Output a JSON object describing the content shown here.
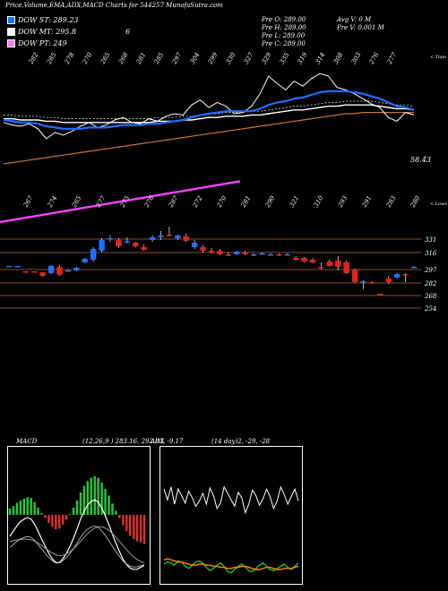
{
  "title": "Price,Volume,EMA,ADX,MACD Charts for 544257 MunafaSutra.com",
  "legend": [
    {
      "label": "DOW ST: 289.23",
      "color": "#1e6fff"
    },
    {
      "label": "DOW MT: 295.8",
      "color": "#ffffff"
    },
    {
      "label": "DOW PT: 249",
      "color": "#ff7ff0"
    }
  ],
  "legend_extra": "6",
  "info_left": [
    "Pre  O: 289.00",
    "Pre  H: 289.00",
    "Pre  L: 289.00",
    "Pre  C: 289.00"
  ],
  "info_right": [
    "Avg V: 0  M",
    "Pre  V: 0.001 M"
  ],
  "ema_label_top": "< Topo",
  "ema_label_bottom": "< Lows",
  "ema_last_value": "58.43",
  "macd_label": "MACD",
  "macd_values": "(12,26,9 ) 283.16, 292.83, -9.17",
  "adx_label": "ADX",
  "adx_values": "(14  day)2,  -29,  -28",
  "colors": {
    "up": "#1e6fff",
    "down": "#e0231e",
    "ema_fast": "#1e6fff",
    "ema_slow": "#ffffff",
    "ema_long": "#c87533",
    "pink": "#ff40ff",
    "macd_pos": "#22c93c",
    "macd_neg": "#e03030",
    "adx_white": "#ffffff",
    "adx_green": "#20c020",
    "adx_orange": "#ff8800"
  },
  "chart_data": [
    {
      "type": "line",
      "name": "ema-panel",
      "top_labels": [
        "282",
        "285",
        "278",
        "270",
        "265",
        "268",
        "281",
        "285",
        "297",
        "304",
        "299",
        "330",
        "327",
        "329",
        "335",
        "319",
        "314",
        "308",
        "303",
        "276",
        "277"
      ],
      "bottom_labels": [
        "267",
        "274",
        "265",
        "277",
        "275",
        "276",
        "287",
        "272",
        "270",
        "281",
        "290",
        "321",
        "310",
        "293",
        "291",
        "283",
        "280"
      ],
      "series": [
        {
          "name": "price",
          "values": [
            283,
            281,
            280,
            282,
            278,
            270,
            275,
            273,
            276,
            280,
            283,
            279,
            281,
            285,
            287,
            283,
            282,
            286,
            284,
            288,
            290,
            289,
            297,
            301,
            295,
            299,
            296,
            290,
            291,
            296,
            306,
            320,
            314,
            309,
            316,
            312,
            318,
            322,
            320,
            311,
            309,
            306,
            302,
            298,
            295,
            287,
            284,
            291,
            289
          ]
        },
        {
          "name": "ema_fast",
          "values": [
            285,
            284,
            283,
            283,
            282,
            280,
            279,
            278,
            278,
            278,
            279,
            279,
            279,
            280,
            281,
            281,
            281,
            282,
            282,
            283,
            284,
            285,
            287,
            289,
            290,
            291,
            292,
            292,
            292,
            292,
            294,
            297,
            299,
            300,
            302,
            303,
            305,
            307,
            308,
            308,
            308,
            307,
            306,
            304,
            302,
            299,
            296,
            295,
            293
          ]
        },
        {
          "name": "ema_slow",
          "values": [
            286,
            286,
            285,
            285,
            285,
            284,
            284,
            283,
            283,
            283,
            283,
            283,
            283,
            283,
            283,
            283,
            283,
            283,
            284,
            284,
            284,
            285,
            285,
            286,
            287,
            287,
            288,
            288,
            288,
            289,
            289,
            290,
            291,
            292,
            293,
            293,
            294,
            295,
            296,
            296,
            297,
            297,
            297,
            297,
            296,
            295,
            294,
            294,
            293
          ]
        },
        {
          "name": "ema_long",
          "values": [
            250,
            251,
            252,
            253,
            254,
            255,
            256,
            257,
            258,
            259,
            260,
            261,
            262,
            263,
            264,
            265,
            266,
            267,
            268,
            269,
            270,
            271,
            272,
            273,
            274,
            275,
            276,
            277,
            278,
            279,
            280,
            281,
            282,
            283,
            284,
            285,
            286,
            287,
            288,
            289,
            290,
            290,
            291,
            291,
            291,
            291,
            291,
            291,
            291
          ]
        },
        {
          "name": "pink",
          "values": [
            232,
            233,
            234,
            235,
            236,
            237,
            238,
            239,
            240,
            241,
            242,
            243,
            244,
            245,
            246,
            247,
            248,
            249,
            250,
            251,
            252,
            253,
            254,
            255,
            256
          ]
        }
      ]
    },
    {
      "type": "candlestick",
      "name": "price-panel",
      "y_ticks": [
        "331",
        "316",
        "297",
        "282",
        "268",
        "254"
      ],
      "candles": [
        {
          "o": 301,
          "h": 301,
          "l": 300,
          "c": 301
        },
        {
          "o": 301,
          "h": 301,
          "l": 300,
          "c": 301
        },
        {
          "o": 295,
          "h": 295,
          "l": 294,
          "c": 294
        },
        {
          "o": 295,
          "h": 295,
          "l": 294,
          "c": 294
        },
        {
          "o": 294,
          "h": 294,
          "l": 289,
          "c": 290
        },
        {
          "o": 293,
          "h": 302,
          "l": 292,
          "c": 301
        },
        {
          "o": 300,
          "h": 302,
          "l": 290,
          "c": 291
        },
        {
          "o": 296,
          "h": 297,
          "l": 295,
          "c": 296
        },
        {
          "o": 296,
          "h": 300,
          "l": 295,
          "c": 299
        },
        {
          "o": 305,
          "h": 310,
          "l": 304,
          "c": 309
        },
        {
          "o": 308,
          "h": 322,
          "l": 306,
          "c": 320
        },
        {
          "o": 318,
          "h": 332,
          "l": 316,
          "c": 330
        },
        {
          "o": 331,
          "h": 335,
          "l": 328,
          "c": 332
        },
        {
          "o": 330,
          "h": 332,
          "l": 321,
          "c": 323
        },
        {
          "o": 328,
          "h": 333,
          "l": 326,
          "c": 329
        },
        {
          "o": 327,
          "h": 328,
          "l": 322,
          "c": 323
        },
        {
          "o": 322,
          "h": 325,
          "l": 318,
          "c": 319
        },
        {
          "o": 330,
          "h": 335,
          "l": 328,
          "c": 333
        },
        {
          "o": 333,
          "h": 340,
          "l": 330,
          "c": 335
        },
        {
          "o": 336,
          "h": 345,
          "l": 334,
          "c": 335
        },
        {
          "o": 332,
          "h": 336,
          "l": 330,
          "c": 335
        },
        {
          "o": 334,
          "h": 337,
          "l": 328,
          "c": 329
        },
        {
          "o": 322,
          "h": 330,
          "l": 320,
          "c": 327
        },
        {
          "o": 322,
          "h": 324,
          "l": 316,
          "c": 318
        },
        {
          "o": 318,
          "h": 321,
          "l": 315,
          "c": 316
        },
        {
          "o": 318,
          "h": 320,
          "l": 313,
          "c": 314
        },
        {
          "o": 314,
          "h": 316,
          "l": 312,
          "c": 313
        },
        {
          "o": 314,
          "h": 318,
          "l": 313,
          "c": 317
        },
        {
          "o": 316,
          "h": 318,
          "l": 313,
          "c": 314
        },
        {
          "o": 313,
          "h": 315,
          "l": 312,
          "c": 314
        },
        {
          "o": 315,
          "h": 316,
          "l": 314,
          "c": 315
        },
        {
          "o": 314,
          "h": 315,
          "l": 313,
          "c": 314
        },
        {
          "o": 314,
          "h": 315,
          "l": 312,
          "c": 313
        },
        {
          "o": 314,
          "h": 315,
          "l": 313,
          "c": 314
        },
        {
          "o": 310,
          "h": 312,
          "l": 307,
          "c": 308
        },
        {
          "o": 310,
          "h": 311,
          "l": 305,
          "c": 306
        },
        {
          "o": 308,
          "h": 310,
          "l": 304,
          "c": 305
        },
        {
          "o": 300,
          "h": 305,
          "l": 297,
          "c": 299
        },
        {
          "o": 306,
          "h": 308,
          "l": 300,
          "c": 301
        },
        {
          "o": 307,
          "h": 312,
          "l": 296,
          "c": 300
        },
        {
          "o": 305,
          "h": 307,
          "l": 292,
          "c": 293
        },
        {
          "o": 297,
          "h": 298,
          "l": 282,
          "c": 283
        },
        {
          "o": 283,
          "h": 285,
          "l": 275,
          "c": 284
        },
        {
          "o": 283,
          "h": 284,
          "l": 281,
          "c": 282
        },
        {
          "o": 270,
          "h": 270,
          "l": 269,
          "c": 269
        },
        {
          "o": 287,
          "h": 290,
          "l": 281,
          "c": 283
        },
        {
          "o": 288,
          "h": 293,
          "l": 287,
          "c": 292
        },
        {
          "o": 292,
          "h": 293,
          "l": 283,
          "c": 291
        },
        {
          "o": 300,
          "h": 301,
          "l": 299,
          "c": 300
        }
      ]
    },
    {
      "type": "bar",
      "name": "macd",
      "values": [
        0.8,
        1.1,
        1.5,
        1.8,
        2.0,
        2.2,
        2.1,
        1.6,
        0.9,
        0.2,
        -0.4,
        -1.0,
        -1.5,
        -1.8,
        -1.7,
        -1.2,
        -0.6,
        0.1,
        0.9,
        1.8,
        2.8,
        3.6,
        4.2,
        4.6,
        4.8,
        4.6,
        4.0,
        3.2,
        2.4,
        1.4,
        0.5,
        -0.4,
        -1.3,
        -2.0,
        -2.6,
        -3.0,
        -3.3,
        -3.4,
        -3.6
      ]
    },
    {
      "type": "line",
      "name": "adx",
      "series": [
        {
          "name": "white",
          "values": [
            44,
            34,
            46,
            30,
            44,
            38,
            31,
            42,
            36,
            28,
            33,
            40,
            30,
            45,
            38,
            26,
            31,
            46,
            40,
            34,
            28,
            41,
            36,
            22,
            30,
            43,
            38,
            29,
            35,
            44,
            37,
            26,
            33,
            46,
            39,
            30,
            37,
            44,
            33
          ]
        },
        {
          "name": "green",
          "values": [
            20,
            22,
            21,
            19,
            23,
            22,
            18,
            16,
            19,
            22,
            23,
            21,
            17,
            14,
            16,
            19,
            21,
            18,
            13,
            12,
            15,
            18,
            20,
            17,
            14,
            13,
            16,
            19,
            21,
            18,
            15,
            14,
            16,
            18,
            20,
            17,
            15,
            18,
            21
          ]
        },
        {
          "name": "orange",
          "values": [
            24,
            25,
            24,
            23,
            22,
            22,
            21,
            20,
            19,
            19,
            20,
            20,
            19,
            19,
            18,
            18,
            17,
            17,
            16,
            16,
            17,
            17,
            18,
            18,
            17,
            16,
            15,
            15,
            16,
            17,
            17,
            16,
            15,
            15,
            16,
            16,
            16,
            17,
            18
          ]
        }
      ]
    }
  ]
}
